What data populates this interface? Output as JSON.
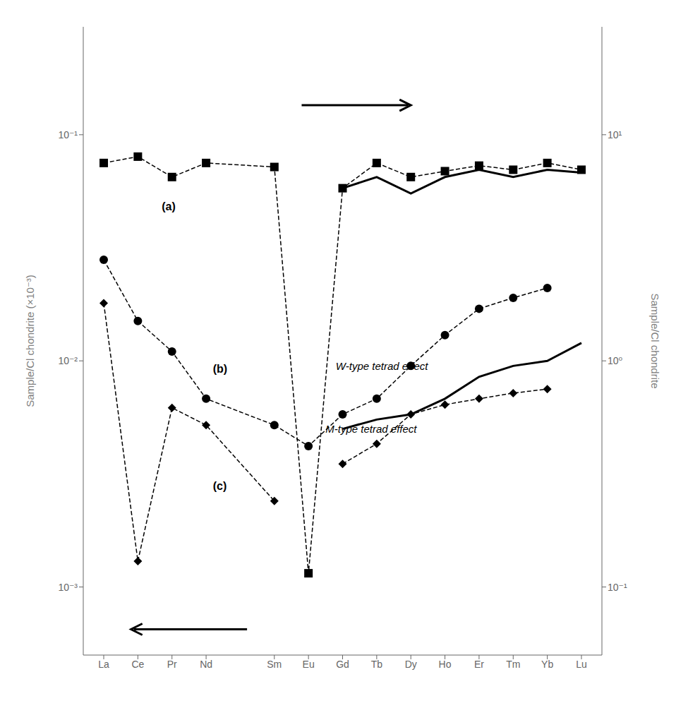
{
  "chart_data": {
    "type": "line",
    "log": "y",
    "grid": false,
    "x": [
      0,
      1,
      2,
      3,
      5,
      6,
      7,
      8,
      9,
      10,
      11,
      12,
      13,
      14
    ],
    "xlim": [
      -0.6,
      14.6
    ],
    "xticks": [
      {
        "value": 0,
        "label": "La"
      },
      {
        "value": 1,
        "label": "Ce"
      },
      {
        "value": 2,
        "label": "Pr"
      },
      {
        "value": 3,
        "label": "Nd"
      },
      {
        "value": 5,
        "label": "Sm"
      },
      {
        "value": 6,
        "label": "Eu"
      },
      {
        "value": 7,
        "label": "Gd"
      },
      {
        "value": 8,
        "label": "Tb"
      },
      {
        "value": 9,
        "label": "Dy"
      },
      {
        "value": 10,
        "label": "Ho"
      },
      {
        "value": 11,
        "label": "Er"
      },
      {
        "value": 12,
        "label": "Tm"
      },
      {
        "value": 13,
        "label": "Yb"
      },
      {
        "value": 14,
        "label": "Lu"
      }
    ],
    "ylim": [
      0.0005,
      0.3
    ],
    "yticks": [
      {
        "value": 0.001,
        "label": "10⁻³"
      },
      {
        "value": 0.01,
        "label": "10⁻²"
      },
      {
        "value": 0.1,
        "label": "10⁻¹"
      }
    ],
    "y2lim": [
      0.05,
      30
    ],
    "y2ticks": [
      {
        "value": 0.1,
        "label": "10⁻¹"
      },
      {
        "value": 1,
        "label": "10⁰"
      },
      {
        "value": 10,
        "label": "10¹"
      }
    ],
    "ylabel": "Sample/Cl chondrite (×10⁻³)",
    "y2label": "Sample/Cl chondrite",
    "series": [
      {
        "color": "#000000",
        "marker": "square",
        "line_style": "dashed",
        "values": [
          0.075,
          0.08,
          0.065,
          0.075,
          0.072,
          0.00115,
          0.058,
          0.075,
          0.065,
          0.069,
          0.073,
          0.07,
          0.075,
          0.07
        ]
      },
      {
        "color": "#000000",
        "marker": "circle",
        "line_style": "dashed",
        "values": [
          0.028,
          0.015,
          0.011,
          0.0068,
          0.0052,
          0.0042,
          0.0058,
          0.0068,
          0.0095,
          0.013,
          0.017,
          0.019,
          0.021,
          null
        ]
      },
      {
        "color": "#000000",
        "marker": "diamond",
        "line_style": "dashed",
        "values": [
          0.018,
          0.0013,
          0.0062,
          0.0052,
          0.0024,
          null,
          0.0035,
          0.0043,
          0.0058,
          0.0064,
          0.0068,
          0.0072,
          0.0075,
          null
        ]
      },
      {
        "color": "#000000",
        "marker": "none",
        "line_style": "solid",
        "x": [
          7,
          8,
          9,
          10,
          11,
          12,
          13,
          14
        ],
        "values": [
          0.058,
          0.065,
          0.055,
          0.065,
          0.07,
          0.065,
          0.07,
          0.068
        ]
      },
      {
        "color": "#000000",
        "marker": "none",
        "line_style": "solid",
        "x": [
          7,
          8,
          9,
          10,
          11,
          12,
          13,
          14
        ],
        "values": [
          0.005,
          0.0055,
          0.0058,
          0.0068,
          0.0085,
          0.0095,
          0.01,
          0.012
        ]
      }
    ],
    "arrows": [
      {
        "x_start": 5.8,
        "x_end": 9.0,
        "y": 0.135,
        "color": "#000000"
      },
      {
        "x_start": 4.2,
        "x_end": 0.8,
        "y": 0.00065,
        "color": "#000000"
      }
    ],
    "annotations": [
      {
        "text": "M-type tetrad effect",
        "x": 6.5,
        "y": 0.005,
        "font_style": "italic"
      },
      {
        "text": "W-type tetrad effect",
        "x": 6.8,
        "y": 0.0095,
        "font_style": "italic"
      },
      {
        "text": "(a)",
        "x": 1.7,
        "y": 0.048,
        "font_style": "bold"
      },
      {
        "text": "(b)",
        "x": 3.2,
        "y": 0.0092,
        "font_style": "bold"
      },
      {
        "text": "(c)",
        "x": 3.2,
        "y": 0.0028,
        "font_style": "bold"
      }
    ]
  }
}
